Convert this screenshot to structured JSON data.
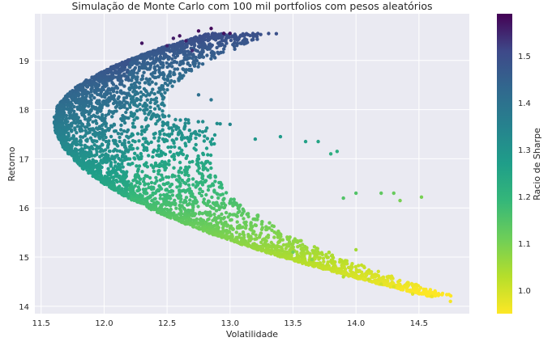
{
  "chart_data": {
    "type": "scatter",
    "title": "Simulação de Monte Carlo com 100 mil portfolios com pesos aleatórios",
    "xlabel": "Volatilidade",
    "ylabel": "Retorno",
    "xlim": [
      11.45,
      14.9
    ],
    "ylim": [
      13.85,
      19.95
    ],
    "xticks": [
      11.5,
      12.0,
      12.5,
      13.0,
      13.5,
      14.0,
      14.5
    ],
    "xtick_labels": [
      "11.5",
      "12.0",
      "12.5",
      "13.0",
      "13.5",
      "14.0",
      "14.5"
    ],
    "yticks": [
      14,
      15,
      16,
      17,
      18,
      19
    ],
    "ytick_labels": [
      "14",
      "15",
      "16",
      "17",
      "18",
      "19"
    ],
    "grid": true,
    "colormap": "viridis",
    "colorbar": {
      "label": "Racio de Sharpe",
      "range": [
        0.95,
        1.59
      ],
      "ticks": [
        1.0,
        1.1,
        1.2,
        1.3,
        1.4,
        1.5
      ],
      "tick_labels": [
        "1.0",
        "1.1",
        "1.2",
        "1.3",
        "1.4",
        "1.5"
      ]
    },
    "frontier": {
      "vertex": {
        "x": 11.6,
        "y": 17.8
      },
      "upper_end": {
        "x": 12.9,
        "y": 19.6
      },
      "lower_end": {
        "x": 14.75,
        "y": 14.1
      }
    },
    "points": [
      {
        "x": 12.85,
        "y": 19.65,
        "sharpe": 1.58
      },
      {
        "x": 12.95,
        "y": 19.55,
        "sharpe": 1.57
      },
      {
        "x": 13.0,
        "y": 19.55,
        "sharpe": 1.57
      },
      {
        "x": 12.75,
        "y": 19.6,
        "sharpe": 1.58
      },
      {
        "x": 12.6,
        "y": 19.5,
        "sharpe": 1.57
      },
      {
        "x": 12.3,
        "y": 19.35,
        "sharpe": 1.57
      },
      {
        "x": 12.5,
        "y": 19.3,
        "sharpe": 1.55
      },
      {
        "x": 12.65,
        "y": 19.4,
        "sharpe": 1.56
      },
      {
        "x": 12.55,
        "y": 19.45,
        "sharpe": 1.56
      },
      {
        "x": 12.7,
        "y": 19.2,
        "sharpe": 1.54
      },
      {
        "x": 12.75,
        "y": 18.3,
        "sharpe": 1.41
      },
      {
        "x": 12.85,
        "y": 18.2,
        "sharpe": 1.39
      },
      {
        "x": 13.0,
        "y": 17.7,
        "sharpe": 1.34
      },
      {
        "x": 13.2,
        "y": 17.4,
        "sharpe": 1.29
      },
      {
        "x": 13.4,
        "y": 17.45,
        "sharpe": 1.28
      },
      {
        "x": 13.6,
        "y": 17.35,
        "sharpe": 1.26
      },
      {
        "x": 13.7,
        "y": 17.35,
        "sharpe": 1.25
      },
      {
        "x": 13.8,
        "y": 17.1,
        "sharpe": 1.22
      },
      {
        "x": 13.85,
        "y": 17.15,
        "sharpe": 1.22
      },
      {
        "x": 14.2,
        "y": 16.3,
        "sharpe": 1.13
      },
      {
        "x": 14.3,
        "y": 16.3,
        "sharpe": 1.12
      },
      {
        "x": 14.35,
        "y": 16.15,
        "sharpe": 1.1
      },
      {
        "x": 14.52,
        "y": 16.22,
        "sharpe": 1.1
      },
      {
        "x": 14.0,
        "y": 16.3,
        "sharpe": 1.15
      },
      {
        "x": 13.9,
        "y": 16.2,
        "sharpe": 1.15
      },
      {
        "x": 14.0,
        "y": 15.15,
        "sharpe": 1.05
      },
      {
        "x": 14.1,
        "y": 14.55,
        "sharpe": 1.01
      },
      {
        "x": 14.2,
        "y": 14.45,
        "sharpe": 1.0
      },
      {
        "x": 14.3,
        "y": 14.4,
        "sharpe": 0.99
      },
      {
        "x": 14.45,
        "y": 14.25,
        "sharpe": 0.98
      },
      {
        "x": 14.6,
        "y": 14.2,
        "sharpe": 0.97
      },
      {
        "x": 14.75,
        "y": 14.1,
        "sharpe": 0.96
      },
      {
        "x": 13.65,
        "y": 14.95,
        "sharpe": 1.08
      },
      {
        "x": 13.9,
        "y": 14.6,
        "sharpe": 1.03
      },
      {
        "x": 13.5,
        "y": 15.1,
        "sharpe": 1.11
      }
    ]
  }
}
